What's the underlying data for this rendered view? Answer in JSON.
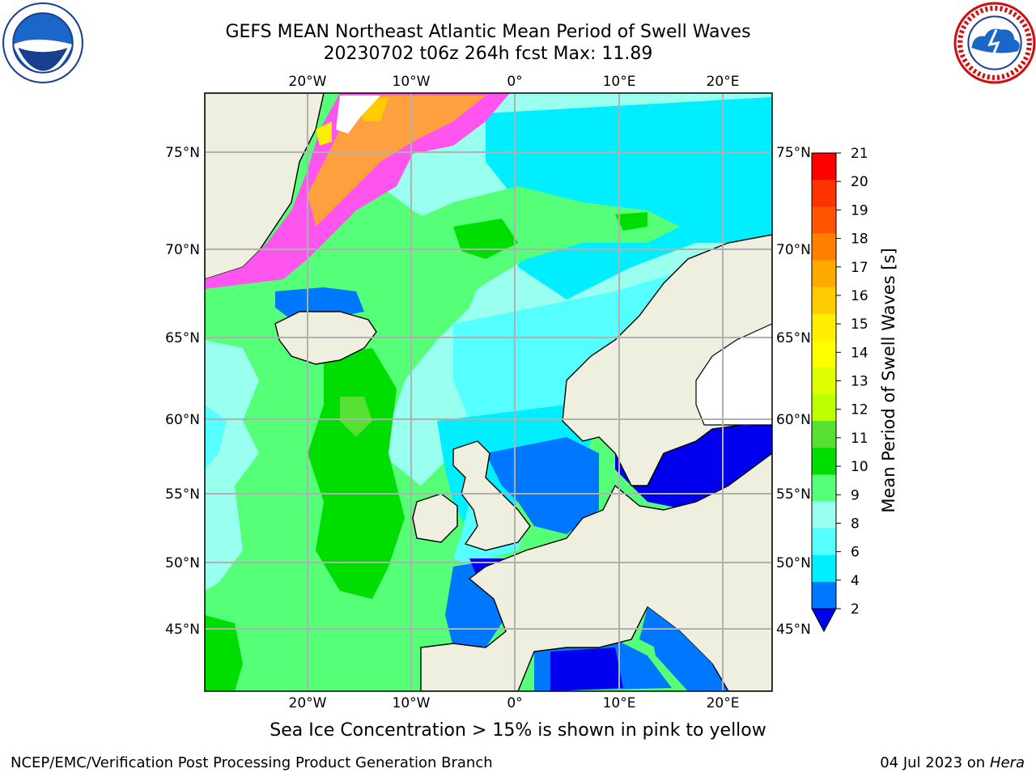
{
  "header": {
    "title_line1": "GEFS MEAN Northeast Atlantic Mean Period of Swell Waves",
    "title_line2": "20230702 t06z 264h fcst   Max: 11.89"
  },
  "logos": {
    "left_icon": "noaa-logo-icon",
    "right_icon": "nws-logo-icon"
  },
  "map": {
    "longitude_labels": [
      "20°W",
      "10°W",
      "0°",
      "10°E",
      "20°E"
    ],
    "latitude_labels": [
      "75°N",
      "70°N",
      "65°N",
      "60°N",
      "55°N",
      "50°N",
      "45°N"
    ],
    "colors": {
      "land": "#efefdf",
      "coast": "#000000",
      "grid": "#b0b0b0",
      "ice_pink": "#ff55ee",
      "ice_orange": "#ffa040",
      "ice_yellow": "#ffee00"
    }
  },
  "colorbar": {
    "label": "Mean Period of Swell Waves [s]",
    "ticks": [
      "21",
      "20",
      "19",
      "18",
      "17",
      "16",
      "15",
      "14",
      "13",
      "12",
      "11",
      "10",
      "9",
      "8",
      "6",
      "4",
      "2"
    ],
    "colors": [
      "#ff0000",
      "#ff3300",
      "#ff5500",
      "#ff8000",
      "#ffaa00",
      "#ffcc00",
      "#ffee00",
      "#ffff00",
      "#ddff00",
      "#bbff00",
      "#55e033",
      "#00dd00",
      "#55ff77",
      "#99ffee",
      "#55ffff",
      "#00eeff",
      "#0077ff",
      "#0000ee"
    ]
  },
  "subtitle": "Sea Ice Concentration > 15% is shown in pink to yellow",
  "footer": {
    "left": "NCEP/EMC/Verification Post Processing Product Generation Branch",
    "date": "04 Jul 2023 on ",
    "host": "Hera"
  }
}
